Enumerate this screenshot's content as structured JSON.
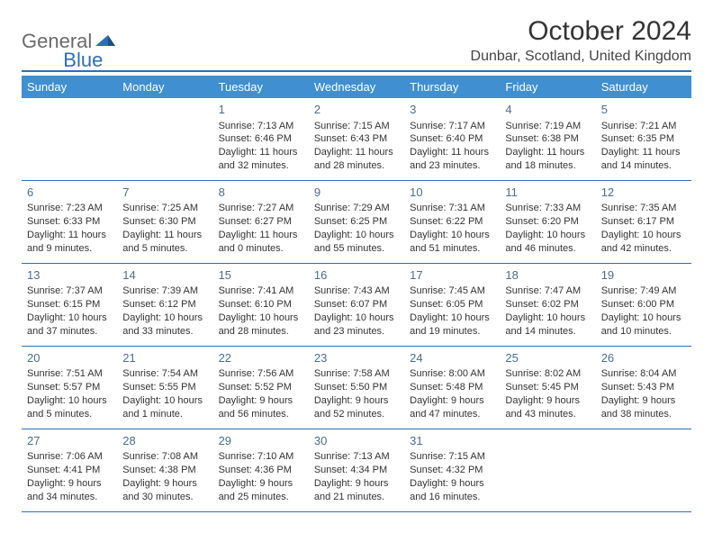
{
  "logo": {
    "part1": "General",
    "part2": "Blue"
  },
  "title": "October 2024",
  "location": "Dunbar, Scotland, United Kingdom",
  "colors": {
    "header_bar": "#3f8fd1",
    "rule": "#2d6fb7",
    "logo_gray": "#6a6a6a",
    "logo_blue": "#2d6fb7",
    "text": "#333333",
    "daynum": "#4a6d8f",
    "bg": "#ffffff"
  },
  "daysOfWeek": [
    "Sunday",
    "Monday",
    "Tuesday",
    "Wednesday",
    "Thursday",
    "Friday",
    "Saturday"
  ],
  "weeks": [
    [
      null,
      null,
      {
        "n": "1",
        "sunrise": "Sunrise: 7:13 AM",
        "sunset": "Sunset: 6:46 PM",
        "day1": "Daylight: 11 hours",
        "day2": "and 32 minutes."
      },
      {
        "n": "2",
        "sunrise": "Sunrise: 7:15 AM",
        "sunset": "Sunset: 6:43 PM",
        "day1": "Daylight: 11 hours",
        "day2": "and 28 minutes."
      },
      {
        "n": "3",
        "sunrise": "Sunrise: 7:17 AM",
        "sunset": "Sunset: 6:40 PM",
        "day1": "Daylight: 11 hours",
        "day2": "and 23 minutes."
      },
      {
        "n": "4",
        "sunrise": "Sunrise: 7:19 AM",
        "sunset": "Sunset: 6:38 PM",
        "day1": "Daylight: 11 hours",
        "day2": "and 18 minutes."
      },
      {
        "n": "5",
        "sunrise": "Sunrise: 7:21 AM",
        "sunset": "Sunset: 6:35 PM",
        "day1": "Daylight: 11 hours",
        "day2": "and 14 minutes."
      }
    ],
    [
      {
        "n": "6",
        "sunrise": "Sunrise: 7:23 AM",
        "sunset": "Sunset: 6:33 PM",
        "day1": "Daylight: 11 hours",
        "day2": "and 9 minutes."
      },
      {
        "n": "7",
        "sunrise": "Sunrise: 7:25 AM",
        "sunset": "Sunset: 6:30 PM",
        "day1": "Daylight: 11 hours",
        "day2": "and 5 minutes."
      },
      {
        "n": "8",
        "sunrise": "Sunrise: 7:27 AM",
        "sunset": "Sunset: 6:27 PM",
        "day1": "Daylight: 11 hours",
        "day2": "and 0 minutes."
      },
      {
        "n": "9",
        "sunrise": "Sunrise: 7:29 AM",
        "sunset": "Sunset: 6:25 PM",
        "day1": "Daylight: 10 hours",
        "day2": "and 55 minutes."
      },
      {
        "n": "10",
        "sunrise": "Sunrise: 7:31 AM",
        "sunset": "Sunset: 6:22 PM",
        "day1": "Daylight: 10 hours",
        "day2": "and 51 minutes."
      },
      {
        "n": "11",
        "sunrise": "Sunrise: 7:33 AM",
        "sunset": "Sunset: 6:20 PM",
        "day1": "Daylight: 10 hours",
        "day2": "and 46 minutes."
      },
      {
        "n": "12",
        "sunrise": "Sunrise: 7:35 AM",
        "sunset": "Sunset: 6:17 PM",
        "day1": "Daylight: 10 hours",
        "day2": "and 42 minutes."
      }
    ],
    [
      {
        "n": "13",
        "sunrise": "Sunrise: 7:37 AM",
        "sunset": "Sunset: 6:15 PM",
        "day1": "Daylight: 10 hours",
        "day2": "and 37 minutes."
      },
      {
        "n": "14",
        "sunrise": "Sunrise: 7:39 AM",
        "sunset": "Sunset: 6:12 PM",
        "day1": "Daylight: 10 hours",
        "day2": "and 33 minutes."
      },
      {
        "n": "15",
        "sunrise": "Sunrise: 7:41 AM",
        "sunset": "Sunset: 6:10 PM",
        "day1": "Daylight: 10 hours",
        "day2": "and 28 minutes."
      },
      {
        "n": "16",
        "sunrise": "Sunrise: 7:43 AM",
        "sunset": "Sunset: 6:07 PM",
        "day1": "Daylight: 10 hours",
        "day2": "and 23 minutes."
      },
      {
        "n": "17",
        "sunrise": "Sunrise: 7:45 AM",
        "sunset": "Sunset: 6:05 PM",
        "day1": "Daylight: 10 hours",
        "day2": "and 19 minutes."
      },
      {
        "n": "18",
        "sunrise": "Sunrise: 7:47 AM",
        "sunset": "Sunset: 6:02 PM",
        "day1": "Daylight: 10 hours",
        "day2": "and 14 minutes."
      },
      {
        "n": "19",
        "sunrise": "Sunrise: 7:49 AM",
        "sunset": "Sunset: 6:00 PM",
        "day1": "Daylight: 10 hours",
        "day2": "and 10 minutes."
      }
    ],
    [
      {
        "n": "20",
        "sunrise": "Sunrise: 7:51 AM",
        "sunset": "Sunset: 5:57 PM",
        "day1": "Daylight: 10 hours",
        "day2": "and 5 minutes."
      },
      {
        "n": "21",
        "sunrise": "Sunrise: 7:54 AM",
        "sunset": "Sunset: 5:55 PM",
        "day1": "Daylight: 10 hours",
        "day2": "and 1 minute."
      },
      {
        "n": "22",
        "sunrise": "Sunrise: 7:56 AM",
        "sunset": "Sunset: 5:52 PM",
        "day1": "Daylight: 9 hours",
        "day2": "and 56 minutes."
      },
      {
        "n": "23",
        "sunrise": "Sunrise: 7:58 AM",
        "sunset": "Sunset: 5:50 PM",
        "day1": "Daylight: 9 hours",
        "day2": "and 52 minutes."
      },
      {
        "n": "24",
        "sunrise": "Sunrise: 8:00 AM",
        "sunset": "Sunset: 5:48 PM",
        "day1": "Daylight: 9 hours",
        "day2": "and 47 minutes."
      },
      {
        "n": "25",
        "sunrise": "Sunrise: 8:02 AM",
        "sunset": "Sunset: 5:45 PM",
        "day1": "Daylight: 9 hours",
        "day2": "and 43 minutes."
      },
      {
        "n": "26",
        "sunrise": "Sunrise: 8:04 AM",
        "sunset": "Sunset: 5:43 PM",
        "day1": "Daylight: 9 hours",
        "day2": "and 38 minutes."
      }
    ],
    [
      {
        "n": "27",
        "sunrise": "Sunrise: 7:06 AM",
        "sunset": "Sunset: 4:41 PM",
        "day1": "Daylight: 9 hours",
        "day2": "and 34 minutes."
      },
      {
        "n": "28",
        "sunrise": "Sunrise: 7:08 AM",
        "sunset": "Sunset: 4:38 PM",
        "day1": "Daylight: 9 hours",
        "day2": "and 30 minutes."
      },
      {
        "n": "29",
        "sunrise": "Sunrise: 7:10 AM",
        "sunset": "Sunset: 4:36 PM",
        "day1": "Daylight: 9 hours",
        "day2": "and 25 minutes."
      },
      {
        "n": "30",
        "sunrise": "Sunrise: 7:13 AM",
        "sunset": "Sunset: 4:34 PM",
        "day1": "Daylight: 9 hours",
        "day2": "and 21 minutes."
      },
      {
        "n": "31",
        "sunrise": "Sunrise: 7:15 AM",
        "sunset": "Sunset: 4:32 PM",
        "day1": "Daylight: 9 hours",
        "day2": "and 16 minutes."
      },
      null,
      null
    ]
  ]
}
